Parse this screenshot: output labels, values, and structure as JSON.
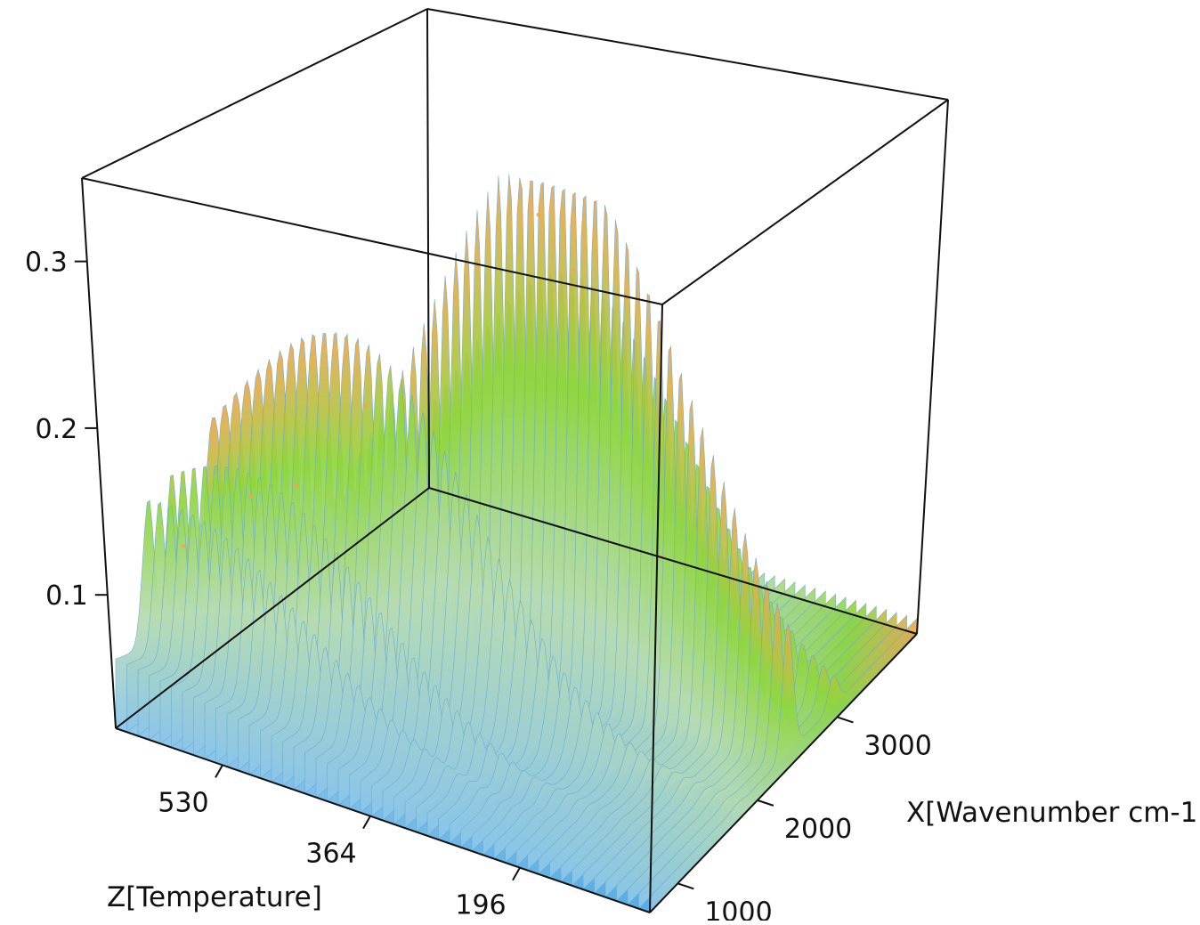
{
  "chart_data": {
    "type": "surface3d",
    "title": "",
    "xlabel": "X[Wavenumber cm-1]",
    "zlabel": "Z[Temperature]",
    "ylabel": "",
    "x_ticks": [
      1000,
      2000,
      3000
    ],
    "x_tick_labels": [
      "1000",
      "2000",
      "3000"
    ],
    "z_ticks": [
      196,
      364,
      530
    ],
    "z_tick_labels": [
      "196",
      "364",
      "530"
    ],
    "y_ticks": [
      0.1,
      0.2,
      0.3
    ],
    "y_tick_labels": [
      "0.1",
      "0.2",
      "0.3"
    ],
    "xlim": [
      650,
      4000
    ],
    "zlim": [
      50,
      650
    ],
    "ylim": [
      0.02,
      0.35
    ],
    "colorscale": [
      "#2f9be0",
      "#8cc6ea",
      "#b7dcb2",
      "#8fd63f",
      "#f0a64f"
    ],
    "peaks": [
      {
        "x": 2350,
        "z": 340,
        "y": 0.33
      },
      {
        "x": 2950,
        "z": 360,
        "y": 0.26
      },
      {
        "x": 1750,
        "z": 480,
        "y": 0.21
      },
      {
        "x": 1250,
        "z": 560,
        "y": 0.16
      },
      {
        "x": 1650,
        "z": 550,
        "y": 0.15
      },
      {
        "x": 1000,
        "z": 610,
        "y": 0.13
      },
      {
        "x": 2400,
        "z": 200,
        "y": 0.13
      }
    ]
  }
}
